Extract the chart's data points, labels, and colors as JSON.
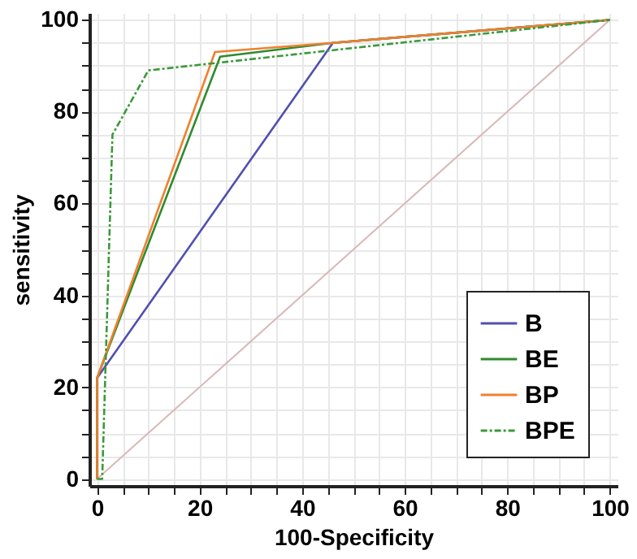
{
  "chart_data": {
    "type": "line",
    "xlabel": "100-Specificity",
    "ylabel": "sensitivity",
    "xlim": [
      -1.5,
      101.5
    ],
    "ylim": [
      -1.5,
      101.5
    ],
    "xticks": [
      0,
      {
        "value": 5,
        "label": null
      },
      {
        "value": 10,
        "label": null
      },
      {
        "value": 15,
        "label": null
      },
      20,
      {
        "value": 25,
        "label": null
      },
      {
        "value": 30,
        "label": null
      },
      {
        "value": 35,
        "label": null
      },
      40,
      {
        "value": 45,
        "label": null
      },
      {
        "value": 50,
        "label": null
      },
      {
        "value": 55,
        "label": null
      },
      60,
      {
        "value": 65,
        "label": null
      },
      {
        "value": 70,
        "label": null
      },
      {
        "value": 75,
        "label": null
      },
      80,
      {
        "value": 85,
        "label": null
      },
      {
        "value": 90,
        "label": null
      },
      {
        "value": 95,
        "label": null
      },
      100
    ],
    "yticks": [
      0,
      {
        "value": 5,
        "label": null
      },
      {
        "value": 10,
        "label": null
      },
      {
        "value": 15,
        "label": null
      },
      20,
      {
        "value": 25,
        "label": null
      },
      {
        "value": 30,
        "label": null
      },
      {
        "value": 35,
        "label": null
      },
      40,
      {
        "value": 45,
        "label": null
      },
      {
        "value": 50,
        "label": null
      },
      {
        "value": 55,
        "label": null
      },
      60,
      {
        "value": 65,
        "label": null
      },
      {
        "value": 70,
        "label": null
      },
      {
        "value": 75,
        "label": null
      },
      80,
      {
        "value": 85,
        "label": null
      },
      {
        "value": 90,
        "label": null
      },
      {
        "value": 95,
        "label": null
      },
      100
    ],
    "grid": true,
    "legend": "bottom right",
    "marker": "none",
    "series": [
      {
        "name": "B",
        "color": "#5050b0",
        "line_style": "solid",
        "x": [
          0,
          0,
          46,
          100
        ],
        "values": [
          0,
          22,
          95,
          100
        ]
      },
      {
        "name": "BE",
        "color": "#2e8b2e",
        "line_style": "solid",
        "x": [
          0,
          0,
          24,
          46,
          100
        ],
        "values": [
          0,
          22,
          92,
          95,
          100
        ]
      },
      {
        "name": "BP",
        "color": "#f08030",
        "line_style": "solid",
        "x": [
          0,
          0,
          23,
          46,
          100
        ],
        "values": [
          0,
          22,
          93,
          95,
          100
        ]
      },
      {
        "name": "BPE",
        "color": "#3a9a3a",
        "line_style": "dashed",
        "x": [
          0,
          1,
          3,
          10,
          100
        ],
        "values": [
          0,
          0,
          75,
          89,
          100
        ]
      },
      {
        "color": "#d8b8b8",
        "line_style": "solid",
        "x": [
          0,
          100
        ],
        "values": [
          0,
          100
        ]
      }
    ]
  }
}
